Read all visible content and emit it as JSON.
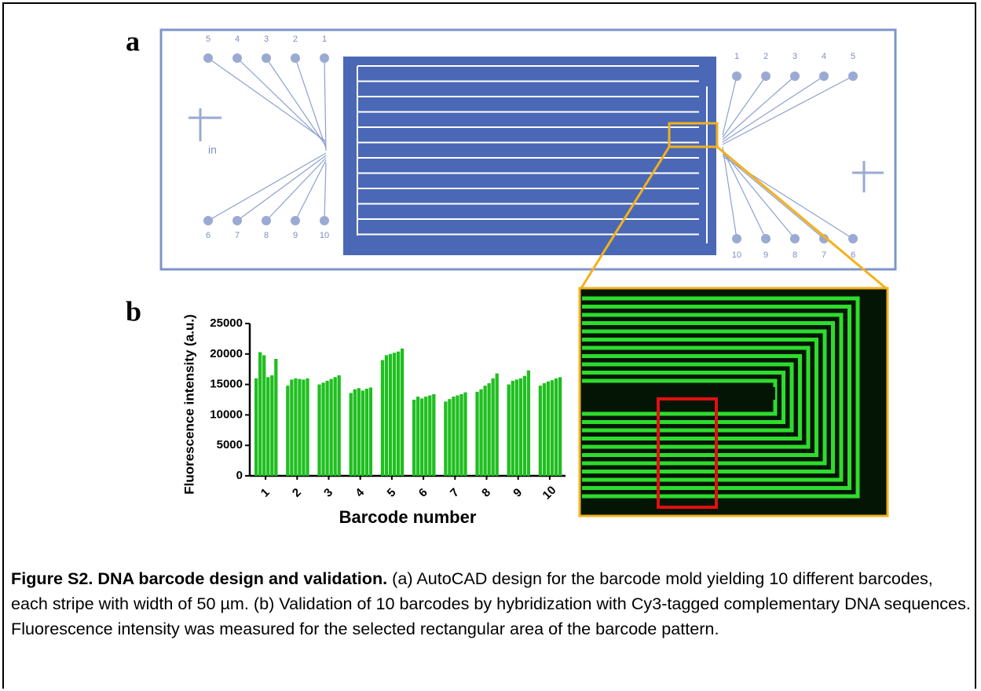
{
  "panel_labels": [
    "a",
    "b"
  ],
  "design": {
    "left_top_pads": [
      "5",
      "4",
      "3",
      "2",
      "1"
    ],
    "left_bottom_pads": [
      "6",
      "7",
      "8",
      "9",
      "10"
    ],
    "right_top_pads": [
      "1",
      "2",
      "3",
      "4",
      "5"
    ],
    "right_bottom_pads": [
      "10",
      "9",
      "8",
      "7",
      "6"
    ],
    "inlet_label": "in"
  },
  "chart_data": {
    "type": "bar",
    "x_label": "Barcode number",
    "y_label": "Fluorescence intensity (a.u.)",
    "categories": [
      "1",
      "2",
      "3",
      "4",
      "5",
      "6",
      "7",
      "8",
      "9",
      "10"
    ],
    "values": [
      [
        16000,
        20300,
        19800,
        16200,
        16500,
        19200
      ],
      [
        14800,
        15800,
        16000,
        15900,
        15800,
        16000
      ],
      [
        15000,
        15300,
        15600,
        15900,
        16200,
        16500
      ],
      [
        13600,
        14200,
        14400,
        14000,
        14300,
        14500
      ],
      [
        19000,
        19800,
        20000,
        20200,
        20400,
        20900
      ],
      [
        12500,
        13000,
        12700,
        13000,
        13200,
        13400
      ],
      [
        12200,
        12600,
        13000,
        13200,
        13400,
        13700
      ],
      [
        13800,
        14200,
        14800,
        15200,
        16000,
        16800
      ],
      [
        15000,
        15600,
        15800,
        16000,
        16400,
        17300
      ],
      [
        14800,
        15200,
        15500,
        15700,
        16000,
        16200
      ]
    ],
    "color": "#1fbf1f",
    "ylim": [
      0,
      25000
    ],
    "yticks": [
      0,
      5000,
      10000,
      15000,
      20000,
      25000
    ]
  },
  "caption": {
    "title": "Figure S2. DNA barcode design and validation.",
    "text": " (a) AutoCAD design for the barcode mold yielding 10 different barcodes, each stripe with width of 50 µm. (b) Validation of 10 barcodes by hybridization with Cy3-tagged complementary DNA sequences. Fluorescence intensity was measured for the selected rectangular area of the barcode pattern."
  }
}
